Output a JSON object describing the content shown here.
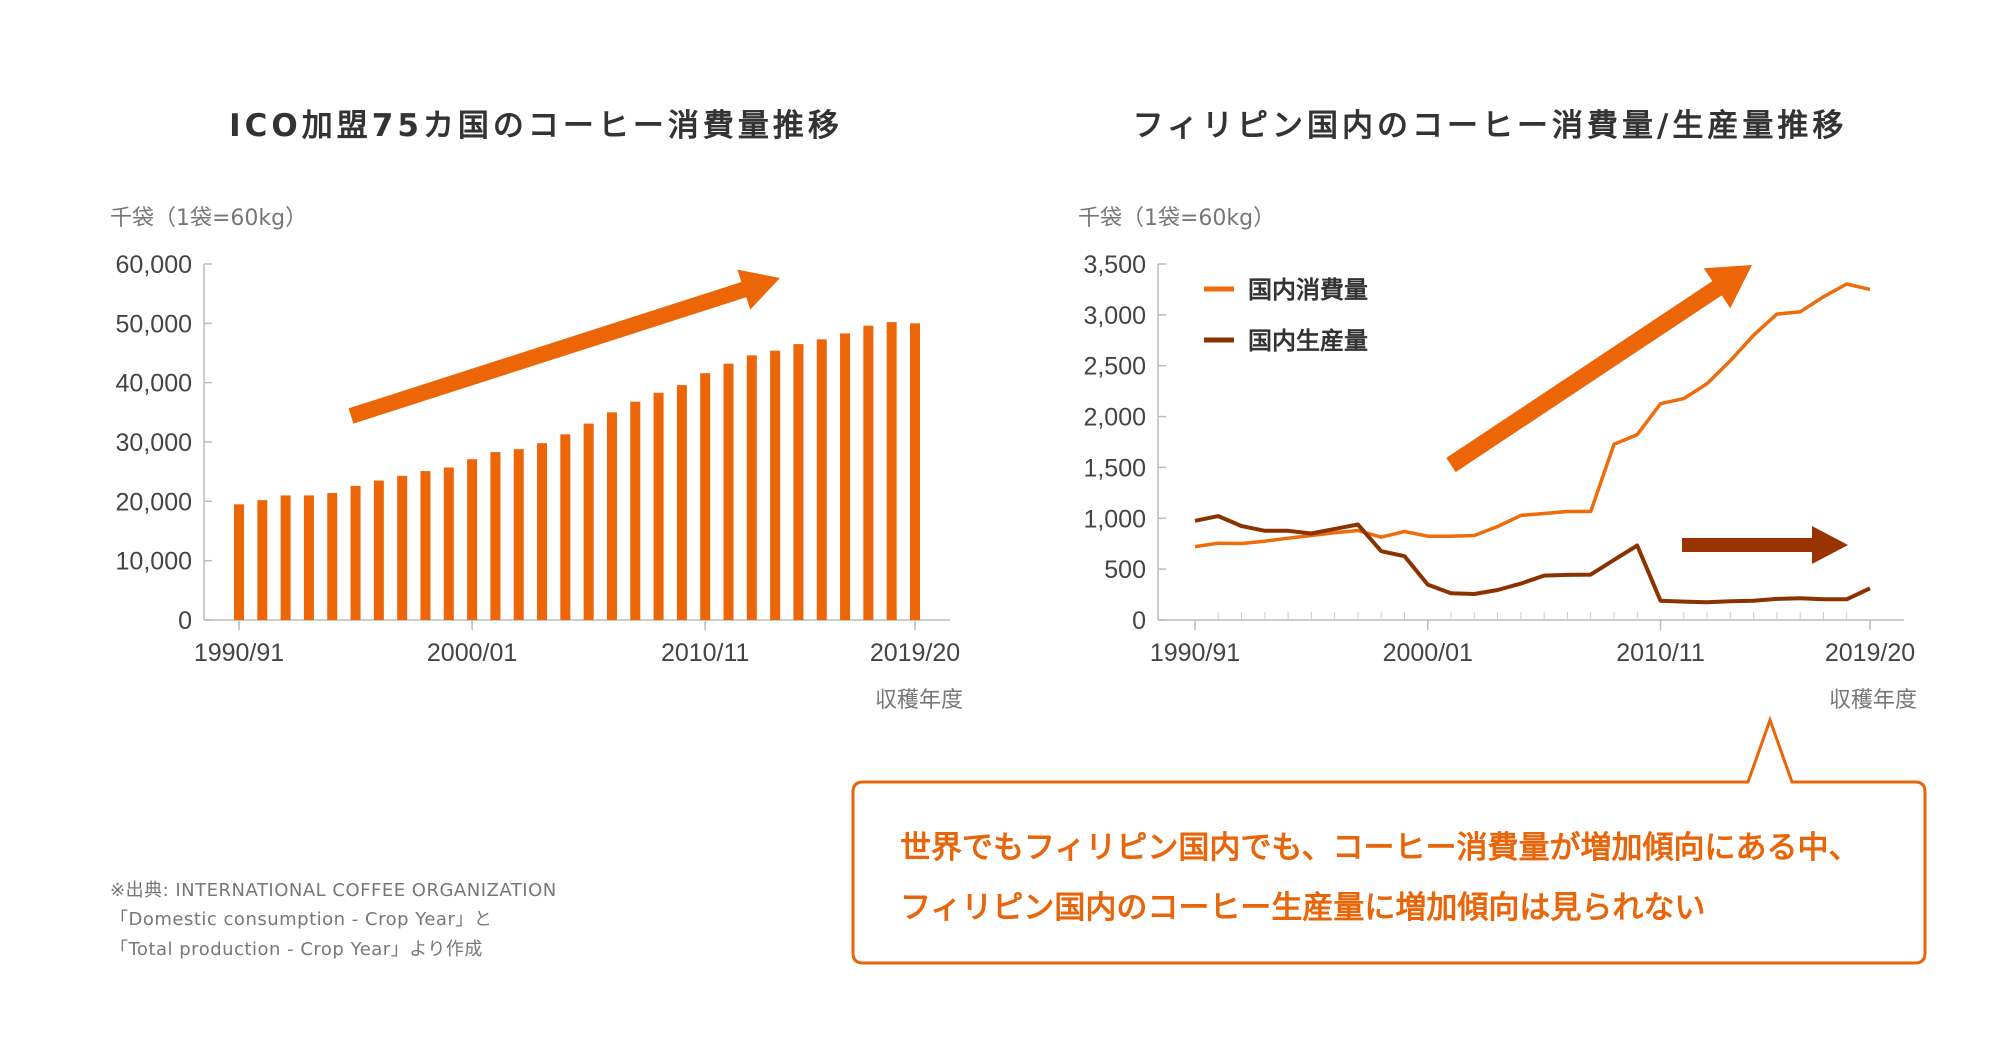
{
  "colors": {
    "consumption": "#ed6c0c",
    "bars": "#ec6608",
    "production": "#8b3300",
    "arrow_up": "#ec6608",
    "arrow_flat": "#993300",
    "callout": "#e8650a"
  },
  "chart_data": [
    {
      "type": "bar",
      "title": "ICO加盟75カ国のコーヒー消費量推移",
      "ylabel": "千袋（1袋=60kg）",
      "xlabel": "収穫年度",
      "ylim": [
        0,
        60000
      ],
      "yticks": [
        "0",
        "10,000",
        "20,000",
        "30,000",
        "40,000",
        "50,000",
        "60,000"
      ],
      "ytick_values": [
        0,
        10000,
        20000,
        30000,
        40000,
        50000,
        60000
      ],
      "xtick_labels": [
        "1990/91",
        "2000/01",
        "2010/11",
        "2019/20"
      ],
      "xtick_index": [
        0,
        10,
        20,
        29
      ],
      "categories": [
        "1990/91",
        "1991/92",
        "1992/93",
        "1993/94",
        "1994/95",
        "1995/96",
        "1996/97",
        "1997/98",
        "1998/99",
        "1999/00",
        "2000/01",
        "2001/02",
        "2002/03",
        "2003/04",
        "2004/05",
        "2005/06",
        "2006/07",
        "2007/08",
        "2008/09",
        "2009/10",
        "2010/11",
        "2011/12",
        "2012/13",
        "2013/14",
        "2014/15",
        "2015/16",
        "2016/17",
        "2017/18",
        "2018/19",
        "2019/20"
      ],
      "values": [
        19500,
        20200,
        21000,
        21000,
        21400,
        22600,
        23500,
        24300,
        25100,
        25700,
        27100,
        28300,
        28800,
        29800,
        31300,
        33100,
        35000,
        36800,
        38300,
        39600,
        41600,
        43200,
        44600,
        45400,
        46500,
        47300,
        48300,
        49600,
        50200,
        50000
      ],
      "grid": false,
      "annotation": "upward-arrow"
    },
    {
      "type": "line",
      "title": "フィリピン国内のコーヒー消費量/生産量推移",
      "ylabel": "千袋（1袋=60kg）",
      "xlabel": "収穫年度",
      "ylim": [
        0,
        3500
      ],
      "yticks": [
        "0",
        "500",
        "1,000",
        "1,500",
        "2,000",
        "2,500",
        "3,000",
        "3,500"
      ],
      "ytick_values": [
        0,
        500,
        1000,
        1500,
        2000,
        2500,
        3000,
        3500
      ],
      "xtick_labels": [
        "1990/91",
        "2000/01",
        "2010/11",
        "2019/20"
      ],
      "xtick_index": [
        0,
        10,
        20,
        29
      ],
      "legend_position": "top-left",
      "series": [
        {
          "name": "国内消費量",
          "values": [
            722,
            755,
            752,
            775,
            804,
            831,
            857,
            880,
            814,
            870,
            824,
            824,
            831,
            919,
            1028,
            1047,
            1067,
            1067,
            1727,
            1822,
            2127,
            2177,
            2324,
            2548,
            2800,
            3007,
            3030,
            3178,
            3303,
            3250
          ]
        },
        {
          "name": "国内生産量",
          "values": [
            975,
            1021,
            923,
            877,
            877,
            850,
            896,
            939,
            676,
            627,
            348,
            263,
            256,
            295,
            358,
            437,
            443,
            446,
            591,
            732,
            190,
            181,
            174,
            184,
            190,
            207,
            213,
            204,
            204,
            312
          ]
        }
      ],
      "grid": false,
      "annotations": [
        "upward-arrow",
        "flat-arrow"
      ]
    }
  ],
  "callout": {
    "line1": "世界でもフィリピン国内でも、コーヒー消費量が増加傾向にある中、",
    "line2": "フィリピン国内のコーヒー生産量に増加傾向は見られない"
  },
  "footnote": {
    "line1": "※出典: INTERNATIONAL COFFEE ORGANIZATION",
    "line2": "「Domestic consumption - Crop Year」と",
    "line3": "「Total production - Crop Year」より作成"
  }
}
